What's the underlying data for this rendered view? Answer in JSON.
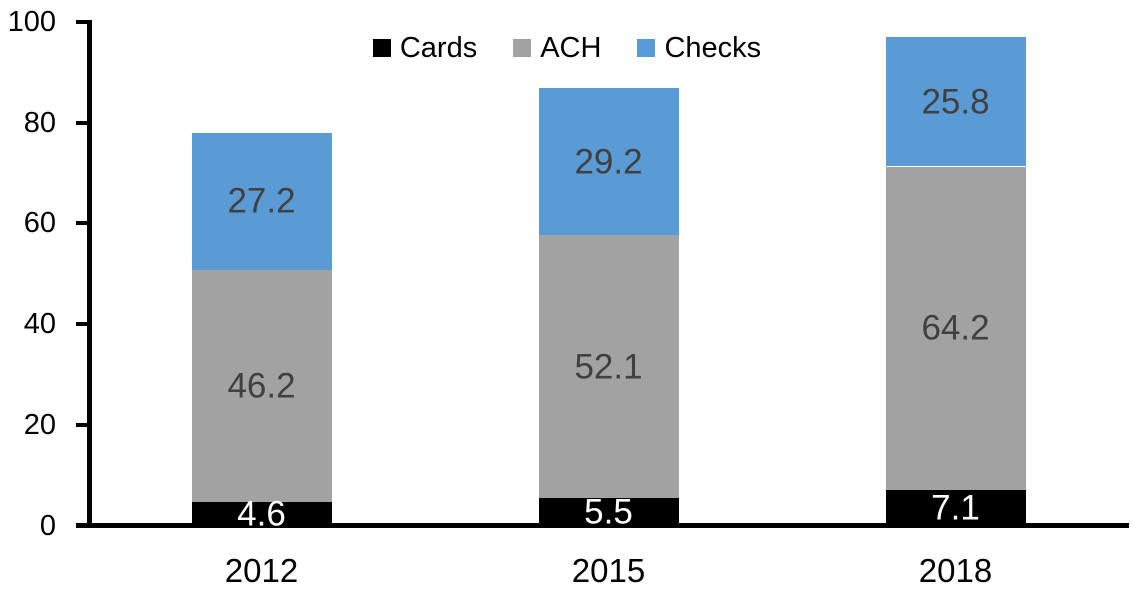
{
  "chart_data": {
    "type": "bar",
    "stacked": true,
    "title": "",
    "categories": [
      "2012",
      "2015",
      "2018"
    ],
    "series": [
      {
        "name": "Cards",
        "color": "#000000",
        "label_color": "#FFFFFF",
        "values": [
          4.6,
          5.5,
          7.1
        ]
      },
      {
        "name": "ACH",
        "color": "#A2A2A2",
        "label_color": "#404040",
        "values": [
          46.2,
          52.1,
          64.2
        ]
      },
      {
        "name": "Checks",
        "color": "#5B9BD5",
        "label_color": "#404040",
        "values": [
          27.2,
          29.2,
          25.8
        ]
      }
    ],
    "totals": [
      78.0,
      86.8,
      97.1
    ],
    "y_axis": {
      "min": 0,
      "max": 100,
      "tick_step": 20,
      "tick_labels": [
        "0",
        "20",
        "40",
        "60",
        "80",
        "100"
      ]
    },
    "x_axis": {
      "tick_labels": [
        "2012",
        "2015",
        "2018"
      ]
    },
    "legend": {
      "position": "top-center",
      "entries": [
        "Cards",
        "ACH",
        "Checks"
      ]
    },
    "grid": false,
    "data_labels": true,
    "data_label_decimals": 1,
    "colors": {
      "cards": "#000000",
      "ach": "#A2A2A2",
      "checks": "#5B9BD5",
      "axis": "#000000",
      "label_on_light": "#404040",
      "label_on_dark": "#FFFFFF"
    }
  }
}
